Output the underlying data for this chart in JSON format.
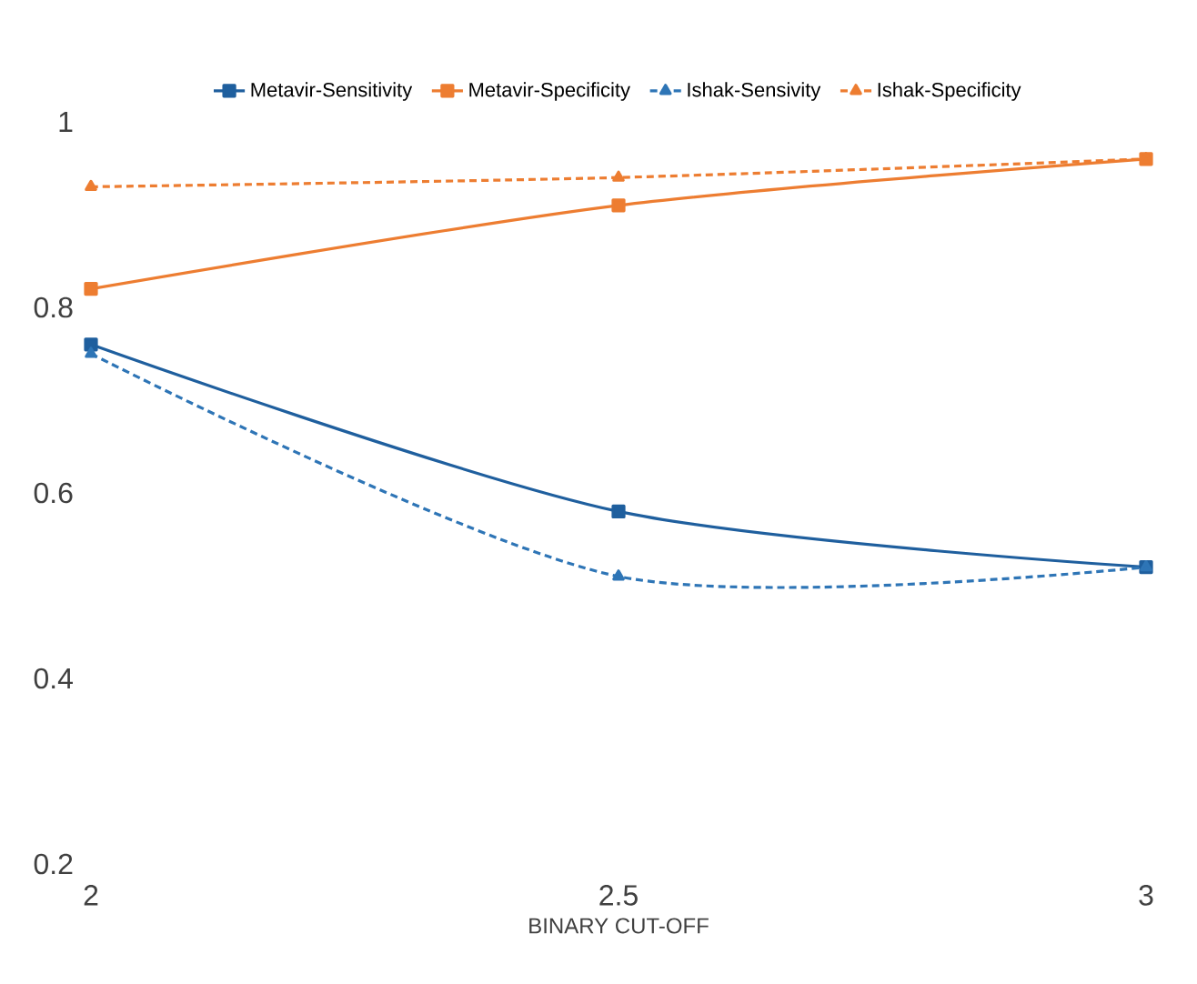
{
  "chart_data": {
    "type": "line",
    "xlabel": "BINARY CUT-OFF",
    "x": [
      2,
      2.5,
      3
    ],
    "xlim": [
      2,
      3
    ],
    "xticks": [
      2,
      2.5,
      3
    ],
    "ylim": [
      0.2,
      1
    ],
    "yticks": [
      0.2,
      0.4,
      0.6,
      0.8,
      1
    ],
    "grid": false,
    "legend": "top",
    "series": [
      {
        "name": "Metavir-Sensitivity",
        "color": "#1f5f9e",
        "values": [
          0.76,
          0.58,
          0.52
        ],
        "marker": "square",
        "line_style": "solid"
      },
      {
        "name": "Metavir-Specificity",
        "color": "#ed7d31",
        "values": [
          0.82,
          0.91,
          0.96
        ],
        "marker": "square",
        "line_style": "solid"
      },
      {
        "name": "Ishak-Sensivity",
        "color": "#2e75b6",
        "values": [
          0.75,
          0.51,
          0.52
        ],
        "marker": "triangle",
        "line_style": "dashed"
      },
      {
        "name": "Ishak-Specificity",
        "color": "#ed7d31",
        "values": [
          0.93,
          0.94,
          0.96
        ],
        "marker": "triangle",
        "line_style": "dashed"
      }
    ]
  }
}
